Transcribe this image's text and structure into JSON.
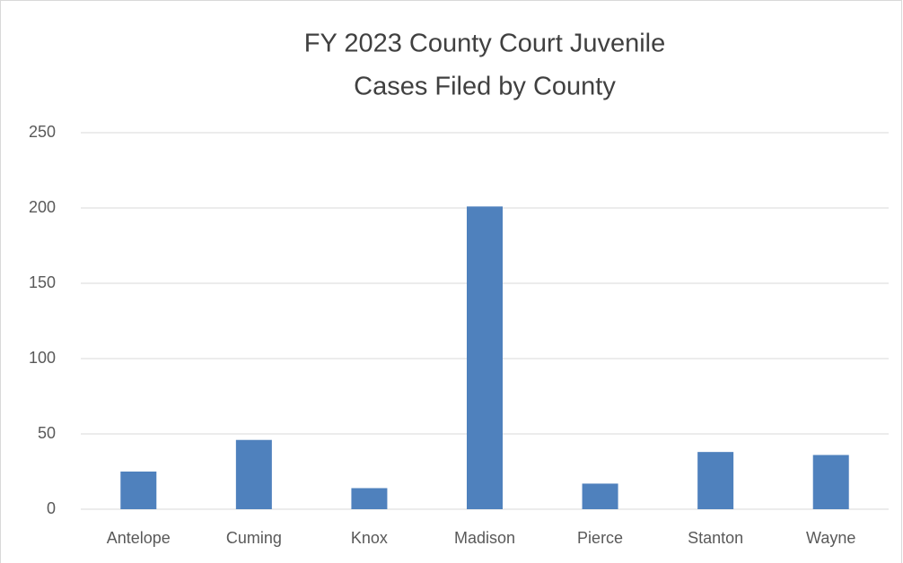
{
  "chart_data": {
    "type": "bar",
    "title": [
      "FY 2023 County Court Juvenile",
      "Cases Filed by County"
    ],
    "categories": [
      "Antelope",
      "Cuming",
      "Knox",
      "Madison",
      "Pierce",
      "Stanton",
      "Wayne"
    ],
    "values": [
      25,
      46,
      14,
      201,
      17,
      38,
      36
    ],
    "color": "#4f81bd",
    "ylim": [
      0,
      250
    ],
    "yticks": [
      0,
      50,
      100,
      150,
      200,
      250
    ],
    "grid": true
  }
}
